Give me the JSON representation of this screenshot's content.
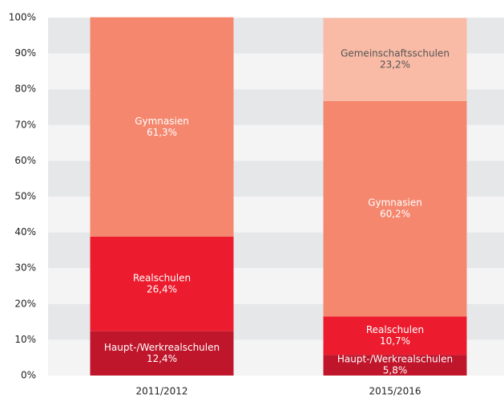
{
  "chart_data": {
    "type": "bar",
    "stacked": true,
    "categories": [
      "2011/2012",
      "2015/2016"
    ],
    "series": [
      {
        "name": "Haupt-/Werkrealschulen",
        "color": "#c0162c",
        "values": [
          12.4,
          5.8
        ],
        "value_labels": [
          "12,4%",
          "5,8%"
        ],
        "label_color": "#ffffff"
      },
      {
        "name": "Realschulen",
        "color": "#ec1c2e",
        "values": [
          26.4,
          10.7
        ],
        "value_labels": [
          "26,4%",
          "10,7%"
        ],
        "label_color": "#ffffff"
      },
      {
        "name": "Gymnasien",
        "color": "#f4876e",
        "values": [
          61.3,
          60.2
        ],
        "value_labels": [
          "61,3%",
          "60,2%"
        ],
        "label_color": "#ffffff"
      },
      {
        "name": "Gemeinschaftsschulen",
        "color": "#f9bba6",
        "values": [
          null,
          23.2
        ],
        "value_labels": [
          null,
          "23,2%"
        ],
        "label_color": "#555555"
      }
    ],
    "ylim": [
      0,
      100
    ],
    "yticks": [
      {
        "value": 0,
        "label": "0%"
      },
      {
        "value": 10,
        "label": "10%"
      },
      {
        "value": 20,
        "label": "20%"
      },
      {
        "value": 30,
        "label": "30%"
      },
      {
        "value": 40,
        "label": "40%"
      },
      {
        "value": 50,
        "label": "50%"
      },
      {
        "value": 60,
        "label": "60%"
      },
      {
        "value": 70,
        "label": "70%"
      },
      {
        "value": 80,
        "label": "80%"
      },
      {
        "value": 90,
        "label": "90%"
      },
      {
        "value": 100,
        "label": "100%"
      }
    ],
    "grid": true
  }
}
